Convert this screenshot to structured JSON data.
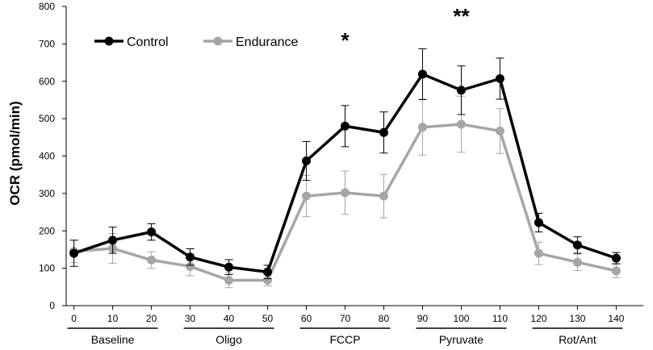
{
  "chart_data": {
    "type": "line",
    "title": "",
    "xlabel": "",
    "ylabel": "OCR (pmol/min)",
    "x": [
      0,
      10,
      20,
      30,
      40,
      50,
      60,
      70,
      80,
      90,
      100,
      110,
      120,
      130,
      140
    ],
    "xlim": [
      -2,
      147
    ],
    "ylim": [
      0,
      800
    ],
    "yticks": [
      0,
      100,
      200,
      300,
      400,
      500,
      600,
      700,
      800
    ],
    "grid": false,
    "legend_position": "top-left",
    "series": [
      {
        "name": "Control",
        "color": "#000000",
        "values": [
          140,
          175,
          197,
          130,
          103,
          90,
          387,
          480,
          463,
          619,
          576,
          607,
          222,
          162,
          127
        ],
        "errors": [
          35,
          35,
          22,
          22,
          20,
          18,
          52,
          55,
          55,
          68,
          65,
          55,
          25,
          22,
          15
        ]
      },
      {
        "name": "Endurance",
        "color": "#a6a6a6",
        "values": [
          145,
          153,
          122,
          105,
          68,
          68,
          293,
          302,
          293,
          477,
          485,
          467,
          140,
          116,
          93
        ],
        "errors": [
          30,
          40,
          22,
          25,
          20,
          15,
          55,
          58,
          58,
          75,
          75,
          60,
          30,
          22,
          18
        ]
      }
    ],
    "phases": [
      {
        "label": "Baseline",
        "start": 0,
        "end": 20
      },
      {
        "label": "Oligo",
        "start": 30,
        "end": 50
      },
      {
        "label": "FCCP",
        "start": 60,
        "end": 80
      },
      {
        "label": "Pyruvate",
        "start": 90,
        "end": 110
      },
      {
        "label": "Rot/Ant",
        "start": 120,
        "end": 140
      }
    ],
    "annotations": [
      {
        "text": "*",
        "x": 70,
        "y": 690
      },
      {
        "text": "**",
        "x": 100,
        "y": 755
      }
    ]
  }
}
